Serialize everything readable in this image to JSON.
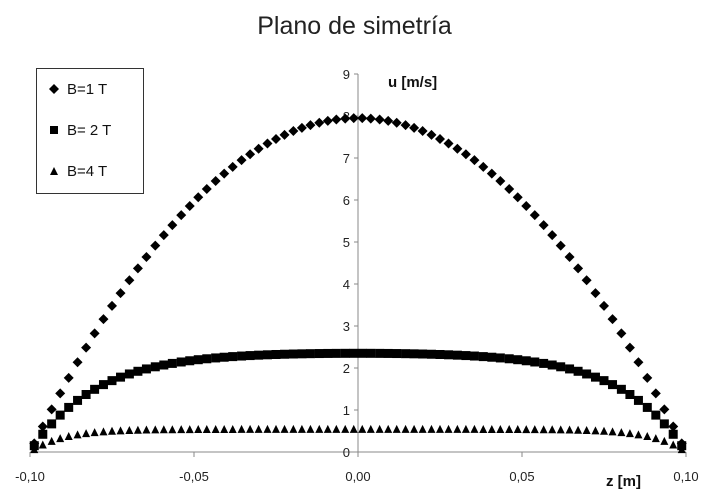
{
  "chart_data": {
    "type": "scatter",
    "title": "Plano de simetría",
    "xlabel": "z [m]",
    "ylabel": "u [m/s]",
    "xlim": [
      -0.1,
      0.1
    ],
    "ylim": [
      0,
      9
    ],
    "x_tick_labels": [
      "-0,10",
      "-0,05",
      "0,00",
      "0,05",
      "0,10"
    ],
    "x_tick_values": [
      -0.1,
      -0.05,
      0.0,
      0.05,
      0.1
    ],
    "y_tick_labels": [
      "0",
      "1",
      "2",
      "3",
      "4",
      "5",
      "6",
      "7",
      "8",
      "9"
    ],
    "y_tick_values": [
      0,
      1,
      2,
      3,
      4,
      5,
      6,
      7,
      8,
      9
    ],
    "legend_position": "top-left",
    "series": [
      {
        "name": "B=1 T",
        "marker": "diamond",
        "peak": 7.95,
        "shape": "parabolic"
      },
      {
        "name": "B= 2 T",
        "marker": "square",
        "peak": 2.35,
        "shape": "hartmann",
        "ha": 5
      },
      {
        "name": "B=4 T",
        "marker": "triangle",
        "peak": 0.55,
        "shape": "hartmann",
        "ha": 10
      }
    ],
    "x": [
      -0.0987,
      -0.0961,
      -0.0934,
      -0.0908,
      -0.0882,
      -0.0855,
      -0.0829,
      -0.0803,
      -0.0776,
      -0.075,
      -0.0724,
      -0.0697,
      -0.0671,
      -0.0645,
      -0.0618,
      -0.0592,
      -0.0566,
      -0.0539,
      -0.0513,
      -0.0487,
      -0.0461,
      -0.0434,
      -0.0408,
      -0.0382,
      -0.0355,
      -0.0329,
      -0.0303,
      -0.0276,
      -0.025,
      -0.0224,
      -0.0197,
      -0.0171,
      -0.0145,
      -0.0118,
      -0.0092,
      -0.0066,
      -0.0039,
      -0.0013,
      0.0013,
      0.0039,
      0.0066,
      0.0092,
      0.0118,
      0.0145,
      0.0171,
      0.0197,
      0.0224,
      0.025,
      0.0276,
      0.0303,
      0.0329,
      0.0355,
      0.0382,
      0.0408,
      0.0434,
      0.0461,
      0.0487,
      0.0513,
      0.0539,
      0.0566,
      0.0592,
      0.0618,
      0.0645,
      0.0671,
      0.0697,
      0.0724,
      0.075,
      0.0776,
      0.0803,
      0.0829,
      0.0855,
      0.0882,
      0.0908,
      0.0934,
      0.0961,
      0.0987
    ]
  }
}
